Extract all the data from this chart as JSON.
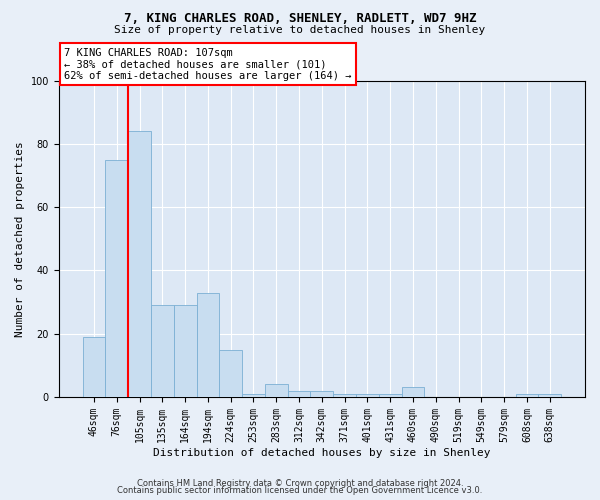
{
  "title": "7, KING CHARLES ROAD, SHENLEY, RADLETT, WD7 9HZ",
  "subtitle": "Size of property relative to detached houses in Shenley",
  "xlabel": "Distribution of detached houses by size in Shenley",
  "ylabel": "Number of detached properties",
  "bar_labels": [
    "46sqm",
    "76sqm",
    "105sqm",
    "135sqm",
    "164sqm",
    "194sqm",
    "224sqm",
    "253sqm",
    "283sqm",
    "312sqm",
    "342sqm",
    "371sqm",
    "401sqm",
    "431sqm",
    "460sqm",
    "490sqm",
    "519sqm",
    "549sqm",
    "579sqm",
    "608sqm",
    "638sqm"
  ],
  "bar_values": [
    19,
    75,
    84,
    29,
    29,
    33,
    15,
    1,
    4,
    2,
    2,
    1,
    1,
    1,
    3,
    0,
    0,
    0,
    0,
    1,
    1
  ],
  "bar_color": "#c8ddf0",
  "bar_edge_color": "#7bafd4",
  "vline_pos": 1.5,
  "vline_color": "red",
  "annotation_text": "7 KING CHARLES ROAD: 107sqm\n← 38% of detached houses are smaller (101)\n62% of semi-detached houses are larger (164) →",
  "annotation_box_facecolor": "white",
  "annotation_box_edgecolor": "red",
  "ylim": [
    0,
    100
  ],
  "yticks": [
    0,
    20,
    40,
    60,
    80,
    100
  ],
  "footer_line1": "Contains HM Land Registry data © Crown copyright and database right 2024.",
  "footer_line2": "Contains public sector information licensed under the Open Government Licence v3.0.",
  "fig_facecolor": "#e8eff8",
  "plot_facecolor": "#dde8f5",
  "title_fontsize": 9,
  "subtitle_fontsize": 8,
  "xlabel_fontsize": 8,
  "ylabel_fontsize": 8,
  "tick_fontsize": 7,
  "footer_fontsize": 6,
  "ann_fontsize": 7.5
}
